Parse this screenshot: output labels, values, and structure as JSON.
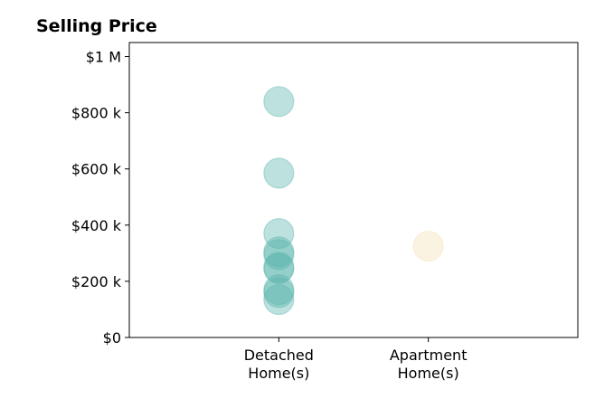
{
  "chart_data": {
    "type": "scatter",
    "title": "Selling Price",
    "xlabel": "",
    "ylabel": "",
    "categories": [
      "Detached\nHome(s)",
      "Apartment\nHome(s)"
    ],
    "xlim": [
      -1,
      2
    ],
    "ylim": [
      0,
      1050000
    ],
    "yticks": [
      0,
      200000,
      400000,
      600000,
      800000,
      1000000
    ],
    "ytick_labels": [
      "$0",
      "$200 k",
      "$400 k",
      "$600 k",
      "$800 k",
      "$1 M"
    ],
    "grid": false,
    "legend": "none",
    "series": [
      {
        "category_index": 0,
        "color": "#5ab4ac",
        "values": [
          840000,
          585000,
          370000,
          305000,
          295000,
          250000,
          245000,
          170000,
          160000,
          135000
        ]
      },
      {
        "category_index": 1,
        "color": "#f6e0b3",
        "values": [
          325000
        ]
      }
    ]
  }
}
